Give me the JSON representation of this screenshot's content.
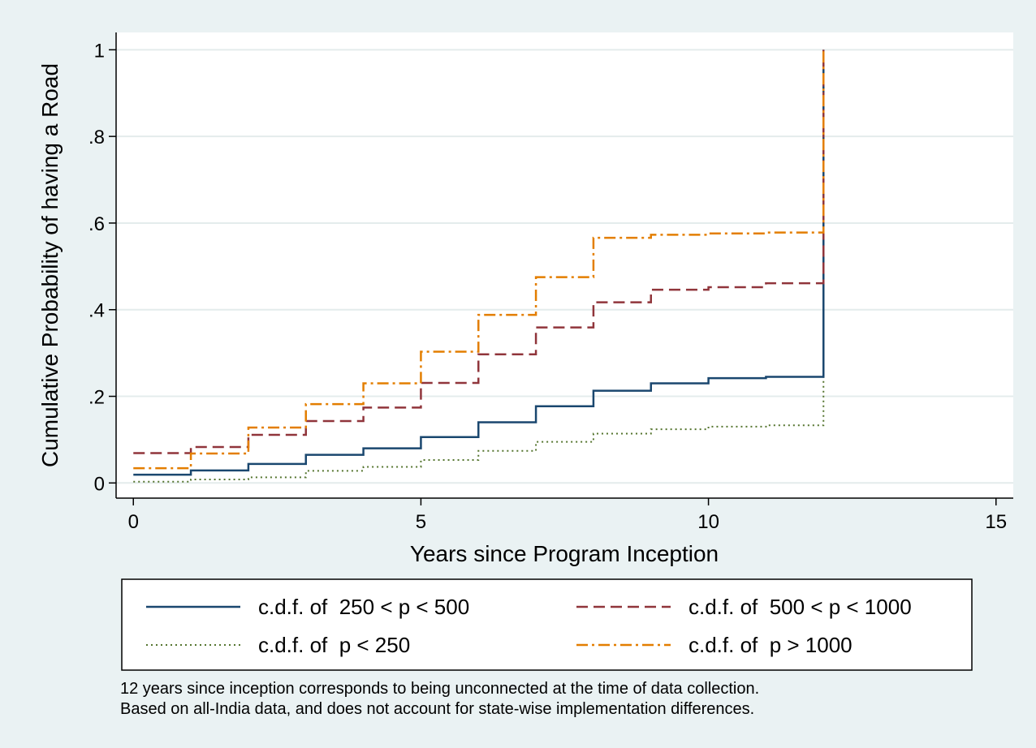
{
  "chart_data": {
    "type": "line",
    "step": true,
    "title": "",
    "xlabel": "Years since Program Inception",
    "ylabel": "Cumulative Probability of having a Road",
    "xlim": [
      -0.3,
      15.3
    ],
    "ylim": [
      -0.035,
      1.04
    ],
    "xticks": [
      0,
      5,
      10,
      15
    ],
    "xtick_labels": [
      "0",
      "5",
      "10",
      "15"
    ],
    "yticks": [
      0,
      0.2,
      0.4,
      0.6,
      0.8,
      1
    ],
    "ytick_labels": [
      "0",
      ".2",
      ".4",
      ".6",
      ".8",
      "1"
    ],
    "grid": "horizontal",
    "legend_position": "bottom",
    "x": [
      0,
      1,
      2,
      3,
      4,
      5,
      6,
      7,
      8,
      9,
      10,
      11,
      12
    ],
    "series": [
      {
        "name": "c.d.f. of  250 < p < 500",
        "color": "#1a476f",
        "dash": "solid",
        "values": [
          0.019,
          0.029,
          0.044,
          0.065,
          0.08,
          0.106,
          0.14,
          0.177,
          0.213,
          0.23,
          0.242,
          0.245,
          1.0
        ]
      },
      {
        "name": "c.d.f. of  500 < p < 1000",
        "color": "#90353b",
        "dash": "dashed",
        "values": [
          0.069,
          0.083,
          0.111,
          0.143,
          0.174,
          0.231,
          0.297,
          0.359,
          0.417,
          0.446,
          0.452,
          0.461,
          1.0
        ]
      },
      {
        "name": "c.d.f. of  p < 250",
        "color": "#55752f",
        "dash": "dotted",
        "values": [
          0.003,
          0.008,
          0.013,
          0.028,
          0.037,
          0.053,
          0.074,
          0.095,
          0.114,
          0.124,
          0.13,
          0.133,
          1.0
        ]
      },
      {
        "name": "c.d.f. of  p > 1000",
        "color": "#e37e00",
        "dash": "dashdot",
        "values": [
          0.034,
          0.068,
          0.128,
          0.182,
          0.23,
          0.303,
          0.388,
          0.475,
          0.566,
          0.573,
          0.576,
          0.578,
          1.0
        ]
      }
    ],
    "notes": [
      "12 years since inception corresponds to being unconnected at the time of data collection.",
      "Based on all-India data, and does not account for state-wise implementation differences."
    ]
  }
}
